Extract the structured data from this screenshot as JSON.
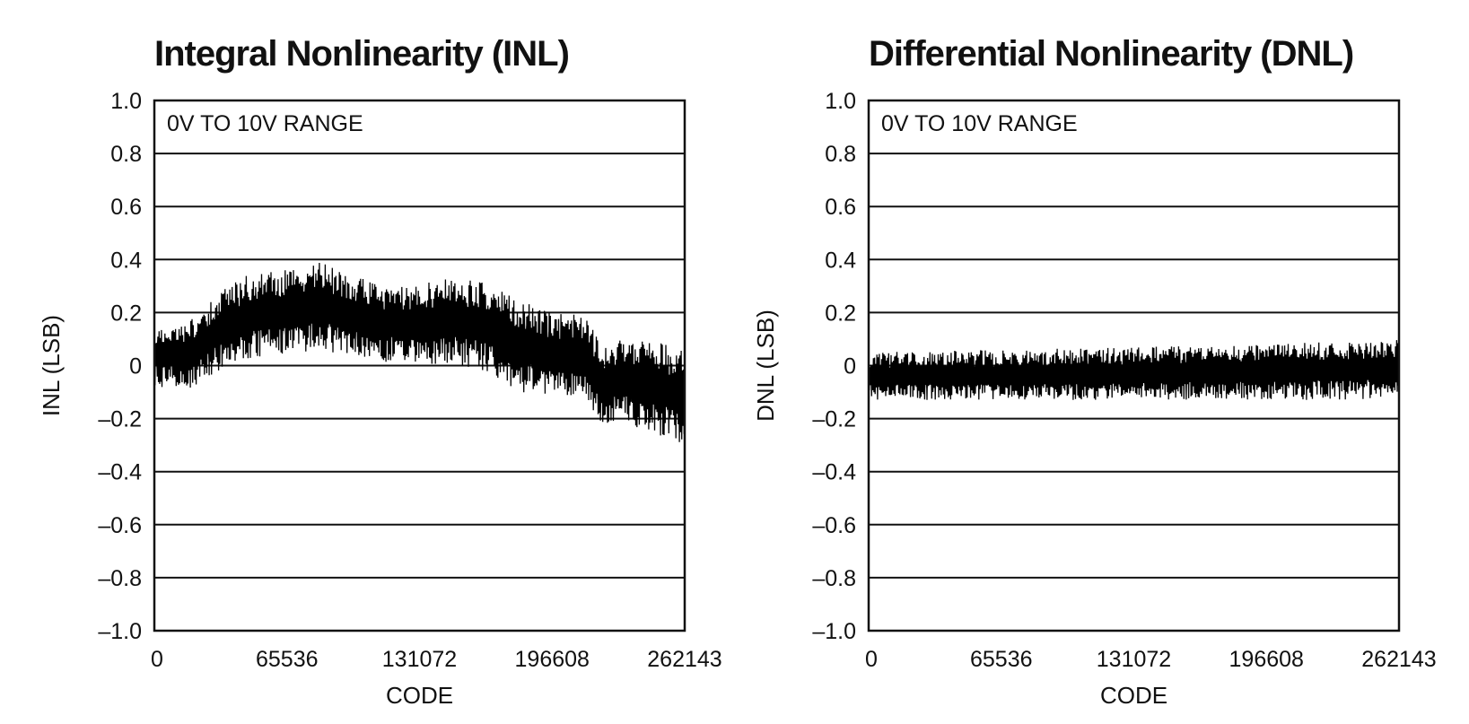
{
  "chart_data": [
    {
      "type": "line",
      "title": "Integral Nonlinearity (INL)",
      "xlabel": "CODE",
      "ylabel": "INL (LSB)",
      "annotation": "0V TO 10V RANGE",
      "xlim": [
        0,
        262143
      ],
      "ylim": [
        -1.0,
        1.0
      ],
      "x_ticks": [
        0,
        65536,
        131072,
        196608,
        262143
      ],
      "x_tick_labels": [
        "0",
        "65536",
        "131072",
        "196608",
        "262143"
      ],
      "y_ticks": [
        1.0,
        0.8,
        0.6,
        0.4,
        0.2,
        0,
        -0.2,
        -0.4,
        -0.6,
        -0.8,
        -1.0
      ],
      "y_tick_labels": [
        "1.0",
        "0.8",
        "0.6",
        "0.4",
        "0.2",
        "0",
        "–0.2",
        "–0.4",
        "–0.6",
        "–0.8",
        "–1.0"
      ],
      "grid": true,
      "series": [
        {
          "color": "#111111",
          "x": [
            0,
            16384,
            32768,
            49152,
            65536,
            81920,
            98304,
            114688,
            131072,
            147456,
            163840,
            180224,
            196608,
            212992,
            221184,
            229376,
            245760,
            262143
          ],
          "center": [
            0.05,
            0.04,
            0.14,
            0.19,
            0.2,
            0.23,
            0.19,
            0.16,
            0.16,
            0.17,
            0.15,
            0.08,
            0.05,
            0.04,
            -0.07,
            -0.05,
            -0.06,
            -0.13
          ],
          "max": [
            0.14,
            0.16,
            0.28,
            0.36,
            0.36,
            0.39,
            0.34,
            0.3,
            0.31,
            0.33,
            0.32,
            0.25,
            0.2,
            0.19,
            0.08,
            0.1,
            0.1,
            0.06
          ],
          "min": [
            -0.08,
            -0.09,
            -0.02,
            0.03,
            0.04,
            0.06,
            0.02,
            0.01,
            0.01,
            0.0,
            -0.02,
            -0.1,
            -0.12,
            -0.13,
            -0.24,
            -0.21,
            -0.25,
            -0.3
          ]
        }
      ]
    },
    {
      "type": "line",
      "title": "Differential Nonlinearity (DNL)",
      "xlabel": "CODE",
      "ylabel": "DNL (LSB)",
      "annotation": "0V TO 10V RANGE",
      "xlim": [
        0,
        262143
      ],
      "ylim": [
        -1.0,
        1.0
      ],
      "x_ticks": [
        0,
        65536,
        131072,
        196608,
        262143
      ],
      "x_tick_labels": [
        "0",
        "65536",
        "131072",
        "196608",
        "262143"
      ],
      "y_ticks": [
        1.0,
        0.8,
        0.6,
        0.4,
        0.2,
        0,
        -0.2,
        -0.4,
        -0.6,
        -0.8,
        -1.0
      ],
      "y_tick_labels": [
        "1.0",
        "0.8",
        "0.6",
        "0.4",
        "0.2",
        "0",
        "–0.2",
        "–0.4",
        "–0.6",
        "–0.8",
        "–1.0"
      ],
      "grid": true,
      "series": [
        {
          "color": "#111111",
          "x": [
            0,
            65536,
            131072,
            196608,
            262143
          ],
          "center": [
            -0.04,
            -0.04,
            -0.03,
            -0.02,
            -0.01
          ],
          "max": [
            0.05,
            0.06,
            0.07,
            0.08,
            0.1
          ],
          "min": [
            -0.13,
            -0.13,
            -0.13,
            -0.13,
            -0.13
          ]
        }
      ]
    }
  ]
}
